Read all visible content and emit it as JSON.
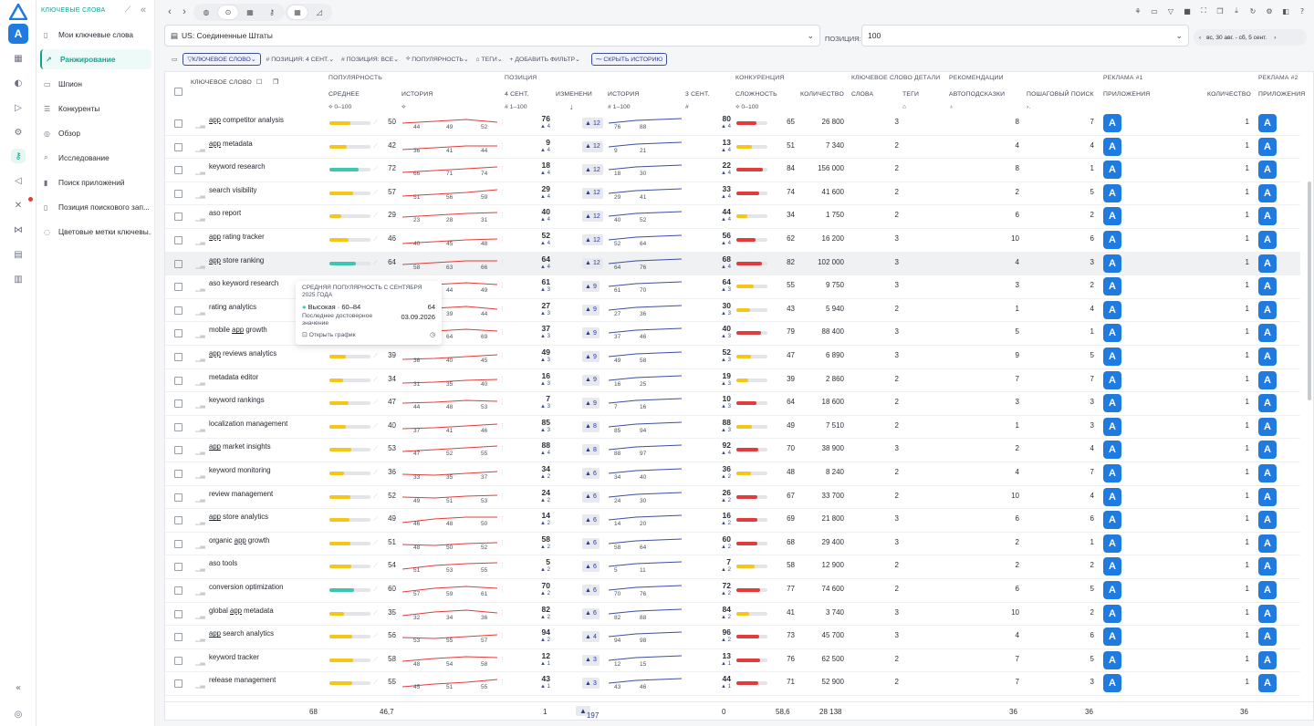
{
  "sidebar": {
    "title": "КЛЮЧЕВЫЕ СЛОВА",
    "items": [
      {
        "label": "Мои ключевые слова",
        "icon": "doc-icon"
      },
      {
        "label": "Ранжирование",
        "icon": "trend-icon",
        "selected": true
      },
      {
        "label": "Шпион",
        "icon": "box-icon"
      },
      {
        "label": "Конкуренты",
        "icon": "list-icon"
      },
      {
        "label": "Обзор",
        "icon": "compass-icon"
      },
      {
        "label": "Исследование",
        "icon": "search-icon"
      },
      {
        "label": "Поиск приложений",
        "icon": "chart-icon"
      },
      {
        "label": "Позиция поискового зап...",
        "icon": "doc-icon"
      },
      {
        "label": "Цветовые метки ключевы...",
        "icon": "tag-icon"
      }
    ]
  },
  "filterbar": {
    "country": "US: Соединенные Штаты",
    "position_label": "ПОЗИЦИЯ:",
    "position_value": "100",
    "date_range": "вс, 30 авг. - сб, 5 сент."
  },
  "filters": {
    "keyword": "КЛЮЧЕВОЕ СЛОВО",
    "pos_sep": "ПОЗИЦИЯ: 4 СЕНТ.",
    "pos_all": "ПОЗИЦИЯ: ВСЕ",
    "pop": "ПОПУЛЯРНОСТЬ",
    "tags": "ТЕГИ",
    "add": "ДОБАВИТЬ ФИЛЬТР",
    "hide": "СКРЫТЬ ИСТОРИЮ"
  },
  "headers": {
    "keyword": "КЛЮЧЕВОЕ СЛОВО",
    "popularity": "ПОПУЛЯРНОСТЬ",
    "avg": "СРЕДНЕЕ",
    "history": "ИСТОРИЯ",
    "position": "ПОЗИЦИЯ",
    "sep4": "4 СЕНТ.",
    "change": "ИЗМЕНЕНИ",
    "history2": "ИСТОРИЯ",
    "sep3": "3 СЕНТ.",
    "competition": "КОНКУРЕНЦИЯ",
    "difficulty": "СЛОЖНОСТЬ",
    "count": "КОЛИЧЕСТВО",
    "kwdetails": "КЛЮЧЕВОЕ СЛОВО ДЕТАЛИ",
    "words": "СЛОВА",
    "tags": "ТЕГИ",
    "reco": "РЕКОМЕНДАЦИИ",
    "autosug": "АВТОПОДСКАЗКИ",
    "stepsearch": "ПОШАГОВЫЙ ПОИСК",
    "ads1": "РЕКЛАМА #1",
    "apps": "ПРИЛОЖЕНИЯ",
    "qty": "КОЛИЧЕСТВО",
    "ads2": "РЕКЛАМА #2",
    "apps2": "ПРИЛОЖЕНИЯ",
    "range1": "0–100",
    "range2": "1–100",
    "range3": "1–100",
    "range4": "0–100"
  },
  "rows": [
    {
      "kw": "app competitor analysis",
      "pop": 50,
      "h": [
        44,
        49,
        52
      ],
      "pos": 76,
      "pd": 4,
      "chg": 12,
      "ph": [
        76,
        88
      ],
      "p3": 80,
      "p3d": 4,
      "diff": 65,
      "cnt": "26 800",
      "words": 3,
      "auto": 8,
      "step": 7,
      "qty": 1
    },
    {
      "kw": "app metadata",
      "pop": 42,
      "h": [
        36,
        41,
        44
      ],
      "pos": 9,
      "pd": 4,
      "chg": 12,
      "ph": [
        9,
        21
      ],
      "p3": 13,
      "p3d": 4,
      "diff": 51,
      "cnt": "7 340",
      "words": 2,
      "auto": 4,
      "step": 4,
      "qty": 1
    },
    {
      "kw": "keyword research",
      "pop": 72,
      "h": [
        66,
        71,
        74
      ],
      "pos": 18,
      "pd": 4,
      "chg": 12,
      "ph": [
        18,
        30
      ],
      "p3": 22,
      "p3d": 4,
      "diff": 84,
      "cnt": "156 000",
      "words": 2,
      "auto": 8,
      "step": 1,
      "qty": 1
    },
    {
      "kw": "search visibility",
      "pop": 57,
      "h": [
        51,
        56,
        59
      ],
      "pos": 29,
      "pd": 4,
      "chg": 12,
      "ph": [
        29,
        41
      ],
      "p3": 33,
      "p3d": 4,
      "diff": 74,
      "cnt": "41 600",
      "words": 2,
      "auto": 2,
      "step": 5,
      "qty": 1
    },
    {
      "kw": "aso report",
      "pop": 29,
      "h": [
        23,
        28,
        31
      ],
      "pos": 40,
      "pd": 4,
      "chg": 12,
      "ph": [
        40,
        52
      ],
      "p3": 44,
      "p3d": 4,
      "diff": 34,
      "cnt": "1 750",
      "words": 2,
      "auto": 6,
      "step": 2,
      "qty": 1
    },
    {
      "kw": "app rating tracker",
      "pop": 46,
      "h": [
        40,
        45,
        48
      ],
      "pos": 52,
      "pd": 4,
      "chg": 12,
      "ph": [
        52,
        64
      ],
      "p3": 56,
      "p3d": 4,
      "diff": 62,
      "cnt": "16 200",
      "words": 3,
      "auto": 10,
      "step": 6,
      "qty": 1
    },
    {
      "kw": "app store ranking",
      "pop": 64,
      "h": [
        58,
        63,
        66
      ],
      "pos": 64,
      "pd": 4,
      "chg": 12,
      "ph": [
        64,
        76
      ],
      "p3": 68,
      "p3d": 4,
      "diff": 82,
      "cnt": "102 000",
      "words": 3,
      "auto": 4,
      "step": 3,
      "qty": 1
    },
    {
      "kw": "aso keyword research",
      "pop": 49,
      "h": [
        43,
        44,
        49
      ],
      "pos": 61,
      "pd": 3,
      "chg": 9,
      "ph": [
        61,
        70
      ],
      "p3": 64,
      "p3d": 3,
      "diff": 55,
      "cnt": "9 750",
      "words": 3,
      "auto": 3,
      "step": 2,
      "qty": 1
    },
    {
      "kw": "rating analytics",
      "pop": 44,
      "h": [
        38,
        39,
        44
      ],
      "pos": 27,
      "pd": 3,
      "chg": 9,
      "ph": [
        27,
        36
      ],
      "p3": 30,
      "p3d": 3,
      "diff": 43,
      "cnt": "5 940",
      "words": 2,
      "auto": 1,
      "step": 4,
      "qty": 1
    },
    {
      "kw": "mobile app growth",
      "pop": 69,
      "h": [
        63,
        64,
        69
      ],
      "pos": 37,
      "pd": 3,
      "chg": 9,
      "ph": [
        37,
        46
      ],
      "p3": 40,
      "p3d": 3,
      "diff": 79,
      "cnt": "88 400",
      "words": 3,
      "auto": 5,
      "step": 1,
      "qty": 1
    },
    {
      "kw": "app reviews analytics",
      "pop": 39,
      "h": [
        36,
        40,
        45
      ],
      "pos": 49,
      "pd": 3,
      "chg": 9,
      "ph": [
        49,
        58
      ],
      "p3": 52,
      "p3d": 3,
      "diff": 47,
      "cnt": "6 890",
      "words": 3,
      "auto": 9,
      "step": 5,
      "qty": 1
    },
    {
      "kw": "metadata editor",
      "pop": 34,
      "h": [
        31,
        35,
        40
      ],
      "pos": 16,
      "pd": 3,
      "chg": 9,
      "ph": [
        16,
        25
      ],
      "p3": 19,
      "p3d": 3,
      "diff": 39,
      "cnt": "2 860",
      "words": 2,
      "auto": 7,
      "step": 7,
      "qty": 1
    },
    {
      "kw": "keyword rankings",
      "pop": 47,
      "h": [
        44,
        48,
        53
      ],
      "pos": 7,
      "pd": 3,
      "chg": 9,
      "ph": [
        7,
        16
      ],
      "p3": 10,
      "p3d": 3,
      "diff": 64,
      "cnt": "18 600",
      "words": 2,
      "auto": 3,
      "step": 3,
      "qty": 1
    },
    {
      "kw": "localization management",
      "pop": 40,
      "h": [
        37,
        41,
        46
      ],
      "pos": 85,
      "pd": 3,
      "chg": 8,
      "ph": [
        85,
        94
      ],
      "p3": 88,
      "p3d": 3,
      "diff": 49,
      "cnt": "7 510",
      "words": 2,
      "auto": 1,
      "step": 3,
      "qty": 1
    },
    {
      "kw": "app market insights",
      "pop": 53,
      "h": [
        47,
        52,
        55
      ],
      "pos": 88,
      "pd": 4,
      "chg": 8,
      "ph": [
        88,
        97
      ],
      "p3": 92,
      "p3d": 4,
      "diff": 70,
      "cnt": "38 900",
      "words": 3,
      "auto": 2,
      "step": 4,
      "qty": 1
    },
    {
      "kw": "keyword monitoring",
      "pop": 36,
      "h": [
        33,
        35,
        37
      ],
      "pos": 34,
      "pd": 2,
      "chg": 6,
      "ph": [
        34,
        40
      ],
      "p3": 36,
      "p3d": 2,
      "diff": 48,
      "cnt": "8 240",
      "words": 2,
      "auto": 4,
      "step": 7,
      "qty": 1
    },
    {
      "kw": "review management",
      "pop": 52,
      "h": [
        49,
        51,
        53
      ],
      "pos": 24,
      "pd": 2,
      "chg": 6,
      "ph": [
        24,
        30
      ],
      "p3": 26,
      "p3d": 2,
      "diff": 67,
      "cnt": "33 700",
      "words": 2,
      "auto": 10,
      "step": 4,
      "qty": 1
    },
    {
      "kw": "app store analytics",
      "pop": 49,
      "h": [
        46,
        48,
        50
      ],
      "pos": 14,
      "pd": 2,
      "chg": 6,
      "ph": [
        14,
        20
      ],
      "p3": 16,
      "p3d": 2,
      "diff": 69,
      "cnt": "21 800",
      "words": 3,
      "auto": 6,
      "step": 6,
      "qty": 1
    },
    {
      "kw": "organic app growth",
      "pop": 51,
      "h": [
        48,
        50,
        52
      ],
      "pos": 58,
      "pd": 2,
      "chg": 6,
      "ph": [
        58,
        64
      ],
      "p3": 60,
      "p3d": 2,
      "diff": 68,
      "cnt": "29 400",
      "words": 3,
      "auto": 2,
      "step": 1,
      "qty": 1
    },
    {
      "kw": "aso tools",
      "pop": 54,
      "h": [
        51,
        53,
        55
      ],
      "pos": 5,
      "pd": 2,
      "chg": 6,
      "ph": [
        5,
        11
      ],
      "p3": 7,
      "p3d": 2,
      "diff": 58,
      "cnt": "12 900",
      "words": 2,
      "auto": 2,
      "step": 2,
      "qty": 1
    },
    {
      "kw": "conversion optimization",
      "pop": 60,
      "h": [
        57,
        59,
        61
      ],
      "pos": 70,
      "pd": 2,
      "chg": 6,
      "ph": [
        70,
        76
      ],
      "p3": 72,
      "p3d": 2,
      "diff": 77,
      "cnt": "74 600",
      "words": 2,
      "auto": 6,
      "step": 5,
      "qty": 1
    },
    {
      "kw": "global app metadata",
      "pop": 35,
      "h": [
        32,
        34,
        36
      ],
      "pos": 82,
      "pd": 2,
      "chg": 6,
      "ph": [
        82,
        88
      ],
      "p3": 84,
      "p3d": 2,
      "diff": 41,
      "cnt": "3 740",
      "words": 3,
      "auto": 10,
      "step": 2,
      "qty": 1
    },
    {
      "kw": "app search analytics",
      "pop": 56,
      "h": [
        53,
        55,
        57
      ],
      "pos": 94,
      "pd": 2,
      "chg": 4,
      "ph": [
        94,
        98
      ],
      "p3": 96,
      "p3d": 2,
      "diff": 73,
      "cnt": "45 700",
      "words": 3,
      "auto": 4,
      "step": 6,
      "qty": 1
    },
    {
      "kw": "keyword tracker",
      "pop": 58,
      "h": [
        48,
        54,
        58
      ],
      "pos": 12,
      "pd": 1,
      "chg": 3,
      "ph": [
        12,
        15
      ],
      "p3": 13,
      "p3d": 1,
      "diff": 76,
      "cnt": "62 500",
      "words": 2,
      "auto": 7,
      "step": 5,
      "qty": 1
    },
    {
      "kw": "release management",
      "pop": 55,
      "h": [
        45,
        51,
        55
      ],
      "pos": 43,
      "pd": 1,
      "chg": 3,
      "ph": [
        43,
        46
      ],
      "p3": 44,
      "p3d": 1,
      "diff": 71,
      "cnt": "52 900",
      "words": 2,
      "auto": 7,
      "step": 3,
      "qty": 1
    }
  ],
  "footer": {
    "count": "68",
    "avg": "46,7",
    "pos": "1",
    "chg": "197",
    "pos3": "0",
    "diff": "58,6",
    "cnt": "28 138",
    "auto": "36",
    "step": "36",
    "qty": "36"
  },
  "tooltip": {
    "title": "СРЕДНЯЯ ПОПУЛЯРНОСТЬ С СЕНТЯБРЯ 2025 ГОДА",
    "level": "Высокая · 60–84",
    "level_val": "64",
    "last_label": "Последнее достоверное значение",
    "last_date": "03.09.2026",
    "open": "Открыть график"
  },
  "colors": {
    "accent": "#15a28c",
    "yellow": "#f5c518",
    "teal": "#3cc7b0",
    "red": "#e23b3b",
    "blue": "#1f7be0",
    "navy": "#2c3a8c"
  }
}
